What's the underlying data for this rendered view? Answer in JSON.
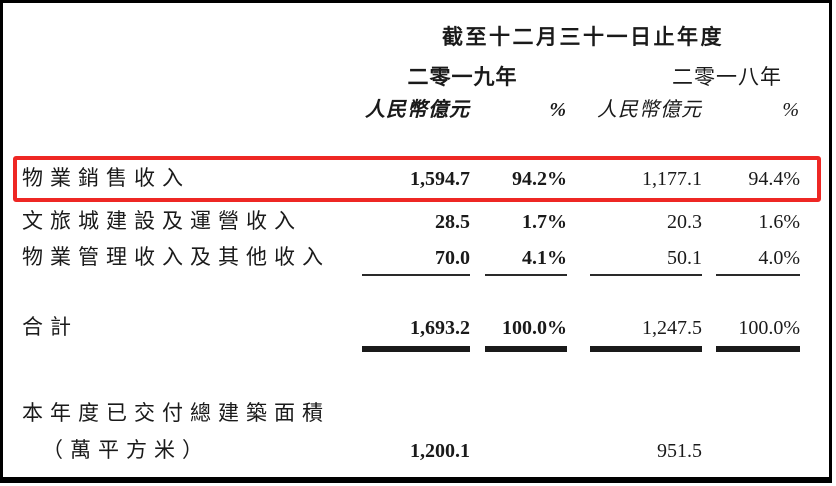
{
  "colors": {
    "highlight_box": "#ee2724",
    "frame": "#000000",
    "text": "#1a1a1a"
  },
  "header": {
    "period": "截至十二月三十一日止年度",
    "year_left": "二零一九年",
    "year_right": "二零一八年",
    "unit_left": "人民幣億元",
    "pct_left": "%",
    "unit_right": "人民幣億元",
    "pct_right": "%"
  },
  "rows": [
    {
      "label": "物業銷售收入",
      "amt_2019": "1,594.7",
      "pct_2019": "94.2%",
      "amt_2018": "1,177.1",
      "pct_2018": "94.4%",
      "highlighted": "true"
    },
    {
      "label": "文旅城建設及運營收入",
      "amt_2019": "28.5",
      "pct_2019": "1.7%",
      "amt_2018": "20.3",
      "pct_2018": "1.6%",
      "highlighted": "false"
    },
    {
      "label": "物業管理收入及其他收入",
      "amt_2019": "70.0",
      "pct_2019": "4.1%",
      "amt_2018": "50.1",
      "pct_2018": "4.0%",
      "highlighted": "false"
    }
  ],
  "total": {
    "label": "合計",
    "amt_2019": "1,693.2",
    "pct_2019": "100.0%",
    "amt_2018": "1,247.5",
    "pct_2018": "100.0%"
  },
  "gfa": {
    "label_line1": "本年度已交付總建築面積",
    "label_line2": "（萬平方米）",
    "amt_2019": "1,200.1",
    "amt_2018": "951.5"
  }
}
